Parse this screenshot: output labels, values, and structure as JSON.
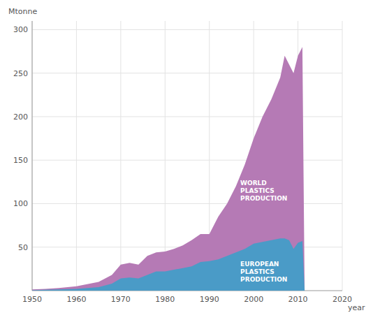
{
  "chart_data": {
    "type": "area",
    "x_label": "year",
    "y_label": "Mtonne",
    "x": [
      1950,
      1953,
      1956,
      1960,
      1965,
      1968,
      1970,
      1972,
      1974,
      1976,
      1978,
      1980,
      1982,
      1984,
      1986,
      1988,
      1990,
      1992,
      1994,
      1996,
      1998,
      2000,
      2002,
      2004,
      2006,
      2007,
      2008,
      2009,
      2010,
      2011,
      2011.5
    ],
    "series": [
      {
        "color": "#b57ab5",
        "values": [
          1.5,
          2,
          3,
          5,
          10,
          18,
          30,
          32,
          30,
          40,
          44,
          45,
          48,
          52,
          58,
          65,
          65,
          85,
          100,
          120,
          145,
          175,
          200,
          220,
          245,
          270,
          260,
          250,
          270,
          280,
          0
        ]
      },
      {
        "color": "#4a9bc7",
        "values": [
          0.5,
          1,
          1.5,
          2,
          4,
          8,
          14,
          15,
          14,
          18,
          22,
          22,
          24,
          26,
          28,
          33,
          34,
          36,
          40,
          44,
          48,
          54,
          56,
          58,
          60,
          60,
          58,
          48,
          55,
          57,
          0
        ]
      }
    ],
    "annotations": [
      {
        "text": "WORLD\nPLASTICS\nPRODUCTION",
        "x": 1997,
        "y": 115
      },
      {
        "text": "EUROPEAN\nPLASTICS\nPRODUCTION",
        "x": 1997,
        "y": 22
      }
    ],
    "xlim": [
      1950,
      2020
    ],
    "ylim": [
      0,
      310
    ],
    "xticks": [
      1950,
      1960,
      1970,
      1980,
      1990,
      2000,
      2010,
      2020
    ],
    "yticks": [
      50,
      100,
      150,
      200,
      250,
      300
    ],
    "grid": true
  }
}
